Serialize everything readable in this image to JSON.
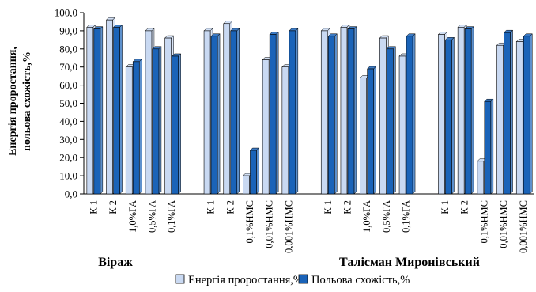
{
  "chart_data": {
    "type": "bar",
    "ylabel_line1": "Енергія проростання,",
    "ylabel_line2": "польова схожість,%",
    "ylim": [
      0,
      100
    ],
    "yticks": [
      "0,0",
      "10,0",
      "20,0",
      "30,0",
      "40,0",
      "50,0",
      "60,0",
      "70,0",
      "80,0",
      "90,0",
      "100,0"
    ],
    "grid": false,
    "legend_position": "bottom",
    "groups": [
      "Віраж",
      "Талісман Миронівський"
    ],
    "categories": [
      "К 1",
      "К 2",
      "1,0%ГА",
      "0,5%ГА",
      "0,1%ГА",
      "К 1",
      "К 2",
      "0,1%НМС",
      "0,01%НМС",
      "0,001%НМС",
      "К 1",
      "К 2",
      "1,0%ГА",
      "0,5%ГА",
      "0,1%ГА",
      "К 1",
      "К 2",
      "0,1%НМС",
      "0,01%НМС",
      "0,001%НМС"
    ],
    "series": [
      {
        "name": "Енергія проростання,%",
        "color": "#c9d9f2",
        "values": [
          92,
          96,
          70,
          90,
          86,
          90,
          94,
          10,
          74,
          70,
          90,
          92,
          64,
          86,
          76,
          88,
          92,
          18,
          82,
          84
        ]
      },
      {
        "name": "Польова схожість,%",
        "color": "#1a63b8",
        "values": [
          91,
          92,
          73,
          80,
          76,
          87,
          90,
          24,
          88,
          90,
          87,
          91,
          69,
          80,
          87,
          85,
          91,
          51,
          89,
          87
        ]
      }
    ]
  }
}
